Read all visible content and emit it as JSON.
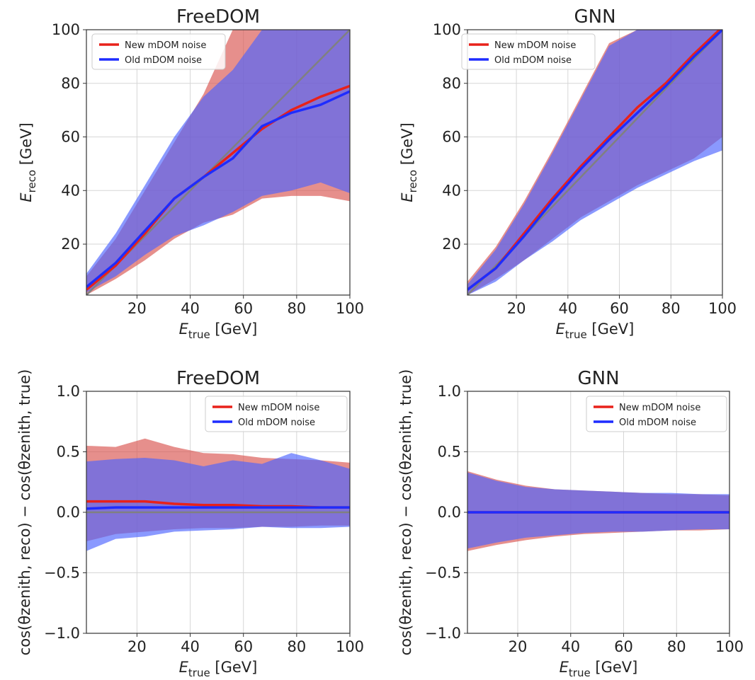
{
  "chart_data": [
    {
      "type": "line",
      "title": "FreeDOM",
      "xlabel": {
        "symbol": "E",
        "sub": "true",
        "unit": " [GeV]"
      },
      "ylabel": {
        "symbol": "E",
        "sub": "reco",
        "unit": " [GeV]"
      },
      "xlim": [
        1,
        100
      ],
      "ylim": [
        1,
        100
      ],
      "xticks": [
        20,
        40,
        60,
        80,
        100
      ],
      "yticks": [
        20,
        40,
        60,
        80,
        100
      ],
      "tick_labels_x": [
        "20",
        "40",
        "60",
        "80",
        "100"
      ],
      "tick_labels_y": [
        "20",
        "40",
        "60",
        "80",
        "100"
      ],
      "grid": true,
      "legend_position": "upper-left",
      "reference_line": {
        "color": "#808080",
        "x": [
          1,
          100
        ],
        "y": [
          1,
          100
        ]
      },
      "series": [
        {
          "name": "New mDOM noise",
          "color": "#e8211a",
          "band_color": "#d9534f",
          "x": [
            1,
            12,
            23,
            34,
            45,
            56,
            67,
            78,
            89,
            100
          ],
          "median": [
            3,
            12,
            24,
            37,
            45,
            54,
            63,
            70,
            75,
            79
          ],
          "upper": [
            8,
            22,
            40,
            58,
            76,
            100,
            100,
            100,
            100,
            100
          ],
          "lower": [
            1,
            7,
            14,
            22,
            28,
            31,
            37,
            38,
            38,
            36
          ]
        },
        {
          "name": "Old mDOM noise",
          "color": "#1e2cff",
          "band_color": "#4b63ff",
          "x": [
            1,
            12,
            23,
            34,
            45,
            56,
            67,
            78,
            89,
            100
          ],
          "median": [
            4,
            13,
            25,
            37,
            45,
            52,
            64,
            69,
            72,
            77
          ],
          "upper": [
            9,
            24,
            42,
            60,
            75,
            85,
            100,
            100,
            100,
            100
          ],
          "lower": [
            2,
            8,
            16,
            23,
            27,
            32,
            38,
            40,
            43,
            39
          ]
        }
      ]
    },
    {
      "type": "line",
      "title": "GNN",
      "xlabel": {
        "symbol": "E",
        "sub": "true",
        "unit": " [GeV]"
      },
      "ylabel": {
        "symbol": "E",
        "sub": "reco",
        "unit": " [GeV]"
      },
      "xlim": [
        1,
        100
      ],
      "ylim": [
        1,
        100
      ],
      "xticks": [
        20,
        40,
        60,
        80,
        100
      ],
      "yticks": [
        20,
        40,
        60,
        80,
        100
      ],
      "tick_labels_x": [
        "20",
        "40",
        "60",
        "80",
        "100"
      ],
      "tick_labels_y": [
        "20",
        "40",
        "60",
        "80",
        "100"
      ],
      "grid": true,
      "legend_position": "upper-left",
      "reference_line": {
        "color": "#808080",
        "x": [
          1,
          100
        ],
        "y": [
          1,
          100
        ]
      },
      "series": [
        {
          "name": "New mDOM noise",
          "color": "#e8211a",
          "band_color": "#d9534f",
          "x": [
            1,
            12,
            23,
            34,
            45,
            56,
            67,
            78,
            89,
            100
          ],
          "median": [
            3,
            11,
            24,
            37,
            49,
            60,
            71,
            80,
            91,
            101
          ],
          "upper": [
            6,
            19,
            36,
            55,
            75,
            95,
            100,
            100,
            100,
            100
          ],
          "lower": [
            1,
            7,
            14,
            22,
            30,
            36,
            42,
            47,
            52,
            60
          ]
        },
        {
          "name": "Old mDOM noise",
          "color": "#1e2cff",
          "band_color": "#4b63ff",
          "x": [
            1,
            12,
            23,
            34,
            45,
            56,
            67,
            78,
            89,
            100
          ],
          "median": [
            3,
            11,
            23,
            36,
            48,
            59,
            69,
            79,
            90,
            100
          ],
          "upper": [
            5,
            18,
            35,
            54,
            74,
            94,
            100,
            100,
            100,
            100
          ],
          "lower": [
            1,
            6,
            14,
            21,
            29,
            35,
            41,
            46,
            51,
            55
          ]
        }
      ]
    },
    {
      "type": "line",
      "title": "FreeDOM",
      "xlabel": {
        "symbol": "E",
        "sub": "true",
        "unit": " [GeV]"
      },
      "ylabel": {
        "text": "cos(θzenith, reco) − cos(θzenith, true)"
      },
      "xlim": [
        1,
        100
      ],
      "ylim": [
        -1.0,
        1.0
      ],
      "xticks": [
        20,
        40,
        60,
        80,
        100
      ],
      "yticks": [
        -1.0,
        -0.5,
        0.0,
        0.5,
        1.0
      ],
      "tick_labels_x": [
        "20",
        "40",
        "60",
        "80",
        "100"
      ],
      "tick_labels_y": [
        "−1.0",
        "−0.5",
        "0.0",
        "0.5",
        "1.0"
      ],
      "grid": true,
      "legend_position": "upper-right",
      "reference_line": {
        "color": "#808080",
        "x": [
          1,
          100
        ],
        "y": [
          0,
          0
        ]
      },
      "series": [
        {
          "name": "New mDOM noise",
          "color": "#e8211a",
          "band_color": "#d9534f",
          "x": [
            1,
            12,
            23,
            34,
            45,
            56,
            67,
            78,
            89,
            100
          ],
          "median": [
            0.09,
            0.09,
            0.09,
            0.07,
            0.06,
            0.06,
            0.05,
            0.05,
            0.04,
            0.04
          ],
          "upper": [
            0.55,
            0.54,
            0.61,
            0.54,
            0.49,
            0.48,
            0.45,
            0.44,
            0.43,
            0.41
          ],
          "lower": [
            -0.24,
            -0.18,
            -0.16,
            -0.14,
            -0.13,
            -0.13,
            -0.12,
            -0.12,
            -0.11,
            -0.11
          ]
        },
        {
          "name": "Old mDOM noise",
          "color": "#1e2cff",
          "band_color": "#4b63ff",
          "x": [
            1,
            12,
            23,
            34,
            45,
            56,
            67,
            78,
            89,
            100
          ],
          "median": [
            0.03,
            0.04,
            0.04,
            0.04,
            0.04,
            0.04,
            0.04,
            0.04,
            0.04,
            0.04
          ],
          "upper": [
            0.42,
            0.44,
            0.45,
            0.43,
            0.38,
            0.43,
            0.4,
            0.49,
            0.43,
            0.36
          ],
          "lower": [
            -0.32,
            -0.22,
            -0.2,
            -0.16,
            -0.15,
            -0.14,
            -0.12,
            -0.13,
            -0.13,
            -0.12
          ]
        }
      ]
    },
    {
      "type": "line",
      "title": "GNN",
      "xlabel": {
        "symbol": "E",
        "sub": "true",
        "unit": " [GeV]"
      },
      "ylabel": {
        "text": "cos(θzenith, reco) − cos(θzenith, true)"
      },
      "xlim": [
        1,
        100
      ],
      "ylim": [
        -1.0,
        1.0
      ],
      "xticks": [
        20,
        40,
        60,
        80,
        100
      ],
      "yticks": [
        -1.0,
        -0.5,
        0.0,
        0.5,
        1.0
      ],
      "tick_labels_x": [
        "20",
        "40",
        "60",
        "80",
        "100"
      ],
      "tick_labels_y": [
        "−1.0",
        "−0.5",
        "0.0",
        "0.5",
        "1.0"
      ],
      "grid": true,
      "legend_position": "upper-right",
      "reference_line": {
        "color": "#808080",
        "x": [
          1,
          100
        ],
        "y": [
          0,
          0
        ]
      },
      "series": [
        {
          "name": "New mDOM noise",
          "color": "#e8211a",
          "band_color": "#d9534f",
          "x": [
            1,
            12,
            23,
            34,
            45,
            56,
            67,
            78,
            89,
            100
          ],
          "median": [
            0.0,
            0.0,
            0.0,
            0.0,
            0.0,
            0.0,
            0.0,
            0.0,
            0.0,
            0.0
          ],
          "upper": [
            0.34,
            0.27,
            0.22,
            0.19,
            0.18,
            0.17,
            0.16,
            0.15,
            0.15,
            0.14
          ],
          "lower": [
            -0.32,
            -0.27,
            -0.23,
            -0.2,
            -0.18,
            -0.17,
            -0.16,
            -0.15,
            -0.15,
            -0.14
          ]
        },
        {
          "name": "Old mDOM noise",
          "color": "#1e2cff",
          "band_color": "#4b63ff",
          "x": [
            1,
            12,
            23,
            34,
            45,
            56,
            67,
            78,
            89,
            100
          ],
          "median": [
            0.0,
            0.0,
            0.0,
            0.0,
            0.0,
            0.0,
            0.0,
            0.0,
            0.0,
            0.0
          ],
          "upper": [
            0.33,
            0.26,
            0.21,
            0.19,
            0.18,
            0.17,
            0.16,
            0.16,
            0.15,
            0.15
          ],
          "lower": [
            -0.3,
            -0.25,
            -0.21,
            -0.19,
            -0.17,
            -0.16,
            -0.16,
            -0.15,
            -0.14,
            -0.14
          ]
        }
      ]
    }
  ]
}
